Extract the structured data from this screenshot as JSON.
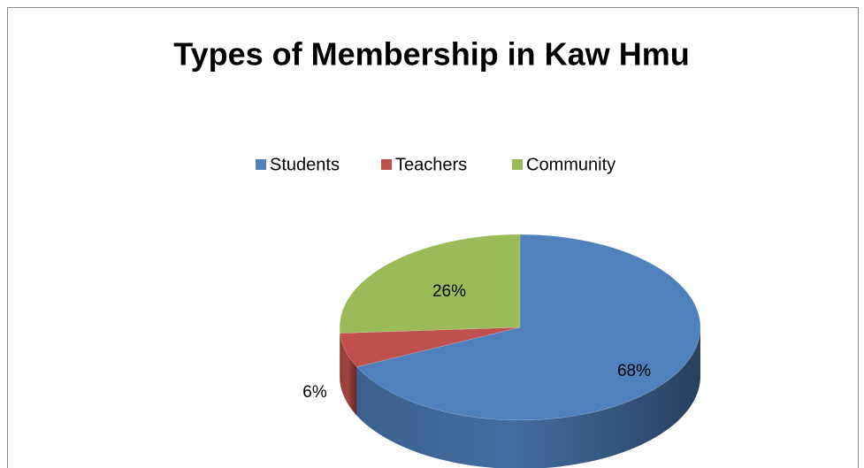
{
  "chart_data": {
    "type": "pie",
    "title": "Types of Membership in Kaw Hmu",
    "categories": [
      "Students",
      "Teachers",
      "Community"
    ],
    "values": [
      68,
      6,
      26
    ],
    "value_labels": [
      "68%",
      "6%",
      "26%"
    ],
    "colors": [
      "#4f81bd",
      "#c0504d",
      "#9bbb59"
    ],
    "legend": "top"
  }
}
